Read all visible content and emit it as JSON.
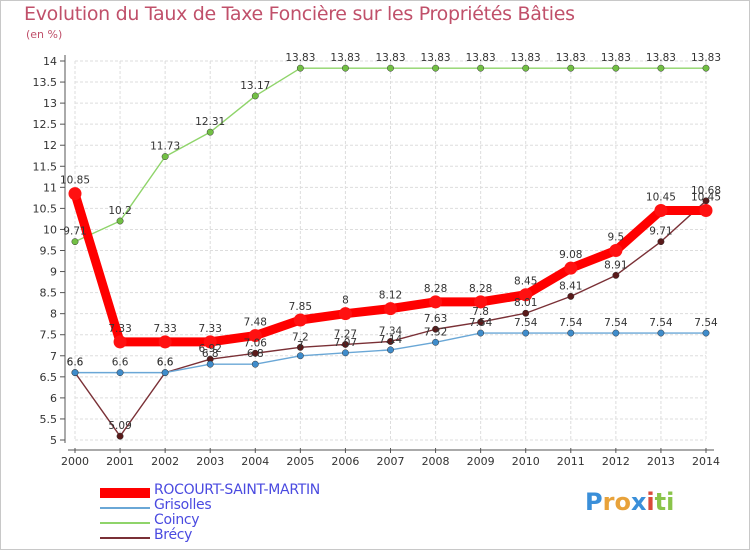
{
  "chart_data": {
    "type": "line",
    "title": "Evolution du Taux de Taxe Foncière sur les Propriétés Bâties",
    "unit_label": "(en %)",
    "categories": [
      "2000",
      "2001",
      "2002",
      "2003",
      "2004",
      "2005",
      "2006",
      "2007",
      "2008",
      "2009",
      "2010",
      "2011",
      "2012",
      "2013",
      "2014"
    ],
    "ylim": [
      5,
      14
    ],
    "yticks": [
      "5",
      "5.5",
      "6",
      "6.5",
      "7",
      "7.5",
      "8",
      "8.5",
      "9",
      "9.5",
      "10",
      "10.5",
      "11",
      "11.5",
      "12",
      "12.5",
      "13",
      "13.5",
      "14"
    ],
    "grid": true,
    "legend_position": "bottom-left",
    "series": [
      {
        "name": "Brécy",
        "color": "#7a3036",
        "marker": "#5a1a1a",
        "thickness": "thin",
        "values": [
          6.6,
          5.09,
          6.6,
          6.92,
          7.06,
          7.2,
          7.27,
          7.34,
          7.63,
          7.8,
          8.01,
          8.41,
          8.91,
          9.71,
          10.68
        ],
        "labels": [
          "6.6",
          "5.09",
          "6.6",
          "6.92",
          "7.06",
          "7.2",
          "7.27",
          "7.34",
          "7.63",
          "7.8",
          "8.01",
          "8.41",
          "8.91",
          "9.71",
          "10.68"
        ]
      },
      {
        "name": "Coincy",
        "color": "#8fd46a",
        "marker": "#72c044",
        "thickness": "thin",
        "values": [
          9.71,
          10.2,
          11.73,
          12.31,
          13.17,
          13.83,
          13.83,
          13.83,
          13.83,
          13.83,
          13.83,
          13.83,
          13.83,
          13.83,
          13.83
        ],
        "labels": [
          "9.71",
          "10.2",
          "11.73",
          "12.31",
          "13.17",
          "13.83",
          "13.83",
          "13.83",
          "13.83",
          "13.83",
          "13.83",
          "13.83",
          "13.83",
          "13.83",
          "13.83"
        ]
      },
      {
        "name": "Grisolles",
        "color": "#6aa7d6",
        "marker": "#3f8ccb",
        "thickness": "thin",
        "values": [
          6.6,
          6.6,
          6.6,
          6.8,
          6.8,
          7.0,
          7.07,
          7.14,
          7.32,
          7.54,
          7.54,
          7.54,
          7.54,
          7.54,
          7.54
        ],
        "labels": [
          "6.6",
          "6.6",
          "6.6",
          "6.8",
          "6.8",
          "7",
          "7.07",
          "7.14",
          "7.32",
          "7.54",
          "7.54",
          "7.54",
          "7.54",
          "7.54",
          "7.54"
        ]
      },
      {
        "name": "ROCOURT-SAINT-MARTIN",
        "color": "#ff0000",
        "marker": "#ff1111",
        "thickness": "thick",
        "values": [
          10.85,
          7.33,
          7.33,
          7.33,
          7.48,
          7.85,
          8.0,
          8.12,
          8.28,
          8.28,
          8.45,
          9.08,
          9.5,
          10.45,
          10.45
        ],
        "labels": [
          "10.85",
          "7.33",
          "7.33",
          "7.33",
          "7.48",
          "7.85",
          "8",
          "8.12",
          "8.28",
          "8.28",
          "8.45",
          "9.08",
          "9.5",
          "10.45",
          "10.45"
        ]
      }
    ]
  },
  "legend": [
    {
      "name": "ROCOURT-SAINT-MARTIN",
      "color": "#ff0000",
      "text_color": "#4a4ae0"
    },
    {
      "name": "Grisolles",
      "color": "#6aa7d6",
      "text_color": "#4a4ae0"
    },
    {
      "name": "Coincy",
      "color": "#8fd46a",
      "text_color": "#4a4ae0"
    },
    {
      "name": "Brécy",
      "color": "#7a3036",
      "text_color": "#4a4ae0"
    }
  ],
  "logo": {
    "letters": [
      "P",
      "r",
      "o",
      "x",
      "i",
      "t",
      "i"
    ],
    "colors": [
      "#3a8fd9",
      "#e8a23a",
      "#e8a23a",
      "#3a8fd9",
      "#d94a3a",
      "#8ac44a",
      "#8ac44a"
    ]
  }
}
